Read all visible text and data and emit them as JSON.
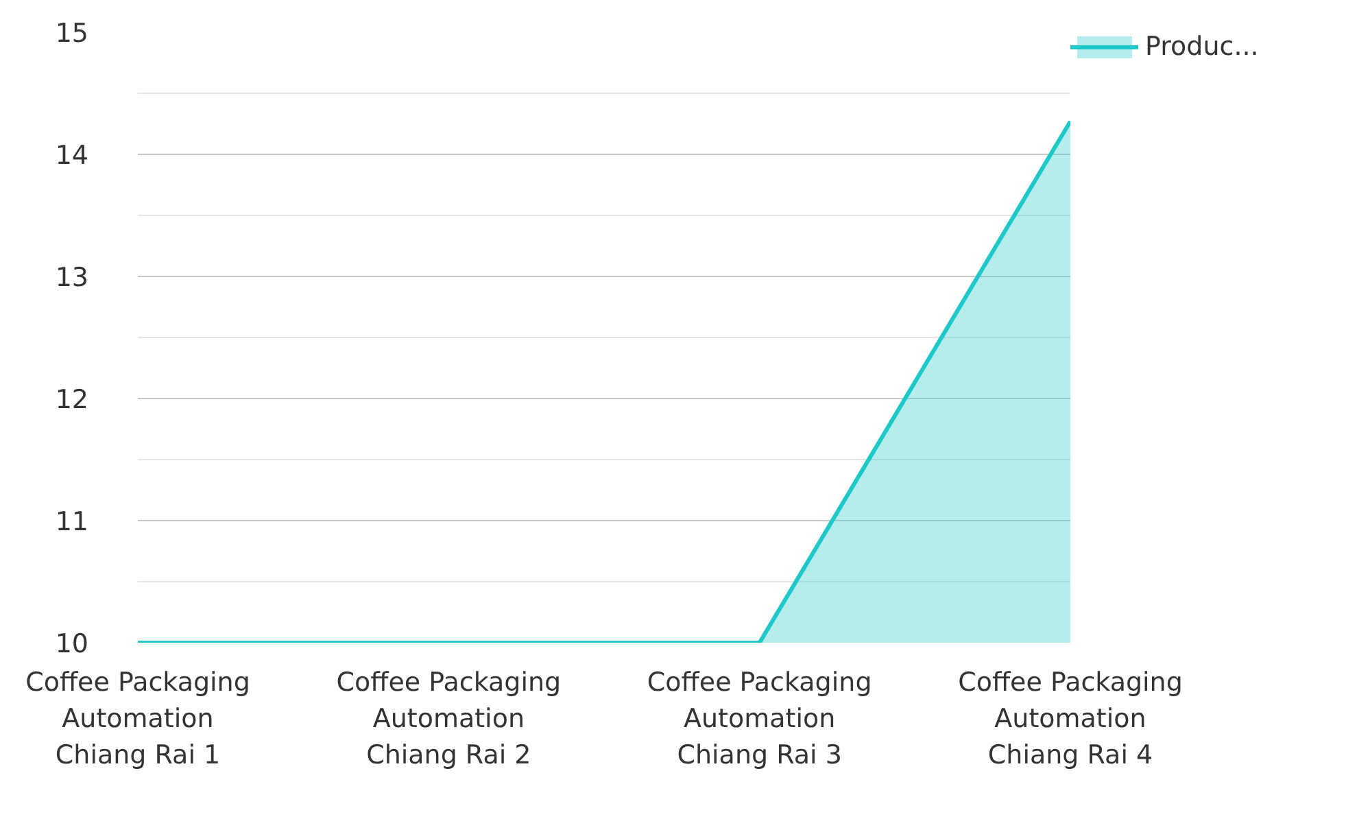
{
  "chart_data": {
    "type": "area",
    "categories": [
      "Coffee Packaging Automation Chiang Rai 1",
      "Coffee Packaging Automation Chiang Rai 2",
      "Coffee Packaging Automation Chiang Rai 3",
      "Coffee Packaging Automation Chiang Rai 4"
    ],
    "series": [
      {
        "name": "Produc...",
        "color": "#1ec8c8",
        "values": [
          10,
          10,
          10,
          14.27
        ]
      }
    ],
    "ylim": [
      10,
      15
    ],
    "yticks": [
      10,
      {
        "value": 10.5,
        "label": null
      },
      11,
      {
        "value": 11.5,
        "label": null
      },
      12,
      {
        "value": 12.5,
        "label": null
      },
      13,
      {
        "value": 13.5,
        "label": null
      },
      14,
      {
        "value": 14.5,
        "label": null
      },
      15
    ],
    "grid": "y",
    "legend": "top right"
  }
}
